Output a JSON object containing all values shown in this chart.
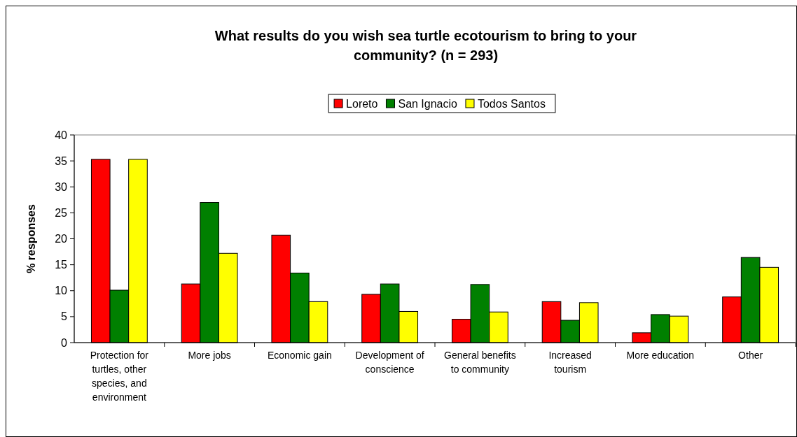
{
  "chart_data": {
    "type": "bar",
    "title": "What results do you wish sea turtle ecotourism to bring to your community? (n = 293)",
    "ylabel": "% responses",
    "categories": [
      "Protection for turtles, other species, and environment",
      "More jobs",
      "Economic gain",
      "Development of conscience",
      "General benefits to community",
      "Increased tourism",
      "More education",
      "Other"
    ],
    "series": [
      {
        "name": "Loreto",
        "color": "#ff0000",
        "values": [
          35.3,
          11.3,
          20.7,
          9.3,
          4.5,
          7.9,
          1.9,
          8.8
        ]
      },
      {
        "name": "San Ignacio",
        "color": "#008000",
        "values": [
          10.1,
          27.0,
          13.4,
          11.3,
          11.2,
          4.3,
          5.4,
          16.4
        ]
      },
      {
        "name": "Todos Santos",
        "color": "#ffff00",
        "values": [
          35.3,
          17.2,
          7.9,
          6.0,
          5.9,
          7.7,
          5.1,
          14.5
        ]
      }
    ],
    "ylim": [
      0,
      40
    ],
    "yticks": [
      0,
      5,
      10,
      15,
      20,
      25,
      30,
      35,
      40
    ],
    "legend": "top",
    "grid": false
  }
}
